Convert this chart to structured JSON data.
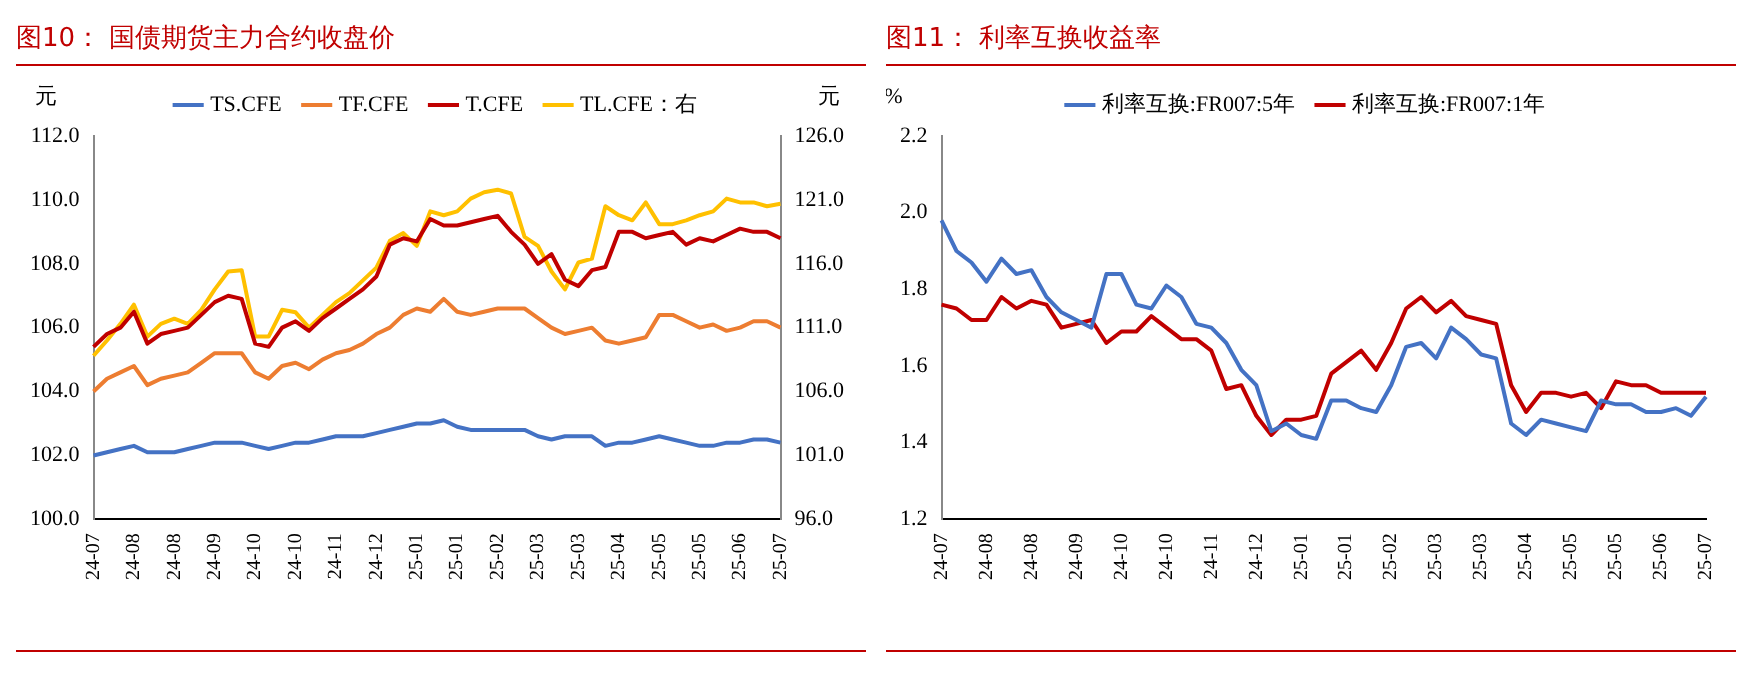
{
  "chart_data": [
    {
      "type": "line",
      "title": "图10：  国债期货主力合约收盘价",
      "ylabel": "元",
      "y2label": "元",
      "legend": "top",
      "grid": false,
      "categories": [
        "24-07",
        null,
        null,
        "24-08",
        null,
        null,
        "24-08",
        null,
        null,
        "24-09",
        null,
        null,
        "24-10",
        null,
        null,
        "24-10",
        null,
        null,
        "24-11",
        null,
        null,
        "24-12",
        null,
        null,
        "25-01",
        null,
        null,
        "25-01",
        null,
        null,
        "25-02",
        null,
        null,
        "25-03",
        null,
        null,
        "25-03",
        null,
        null,
        "25-04",
        null,
        null,
        "25-05",
        null,
        null,
        "25-05",
        null,
        null,
        "25-06",
        null,
        null,
        "25-07"
      ],
      "ylim": [
        100,
        112
      ],
      "yticks": [
        {
          "value": 100,
          "label": "100.0"
        },
        {
          "value": 102,
          "label": "102.0"
        },
        {
          "value": 104,
          "label": "104.0"
        },
        {
          "value": 106,
          "label": "106.0"
        },
        {
          "value": 108,
          "label": "108.0"
        },
        {
          "value": 110,
          "label": "110.0"
        },
        {
          "value": 112,
          "label": "112.0"
        }
      ],
      "y2lim": [
        96,
        126
      ],
      "y2ticks": [
        {
          "value": 96,
          "label": "96.0"
        },
        {
          "value": 101,
          "label": "101.0"
        },
        {
          "value": 106,
          "label": "106.0"
        },
        {
          "value": 111,
          "label": "111.0"
        },
        {
          "value": 116,
          "label": "116.0"
        },
        {
          "value": 121,
          "label": "121.0"
        },
        {
          "value": 126,
          "label": "126.0"
        }
      ],
      "series": [
        {
          "name": "TS.CFE",
          "color": "#4472c4",
          "values": [
            102.0,
            102.1,
            102.2,
            102.3,
            102.1,
            102.1,
            102.1,
            102.2,
            102.3,
            102.4,
            102.4,
            102.4,
            102.3,
            102.2,
            102.3,
            102.4,
            102.4,
            102.5,
            102.6,
            102.6,
            102.6,
            102.7,
            102.8,
            102.9,
            103.0,
            103.0,
            103.1,
            102.9,
            102.8,
            102.8,
            102.8,
            102.8,
            102.8,
            102.6,
            102.5,
            102.6,
            102.6,
            102.6,
            102.3,
            102.4,
            102.4,
            102.5,
            102.6,
            102.5,
            102.4,
            102.3,
            102.3,
            102.4,
            102.4,
            102.5,
            102.5,
            102.4
          ]
        },
        {
          "name": "TF.CFE",
          "color": "#ed7d31",
          "values": [
            104.0,
            104.4,
            104.6,
            104.8,
            104.2,
            104.4,
            104.5,
            104.6,
            104.9,
            105.2,
            105.2,
            105.2,
            104.6,
            104.4,
            104.8,
            104.9,
            104.7,
            105.0,
            105.2,
            105.3,
            105.5,
            105.8,
            106.0,
            106.4,
            106.6,
            106.5,
            106.9,
            106.5,
            106.4,
            106.5,
            106.6,
            106.6,
            106.6,
            106.3,
            106.0,
            105.8,
            105.9,
            106.0,
            105.6,
            105.5,
            105.6,
            105.7,
            106.4,
            106.4,
            106.2,
            106.0,
            106.1,
            105.9,
            106.0,
            106.2,
            106.2,
            106.0
          ]
        },
        {
          "name": "T.CFE",
          "color": "#c00000",
          "values": [
            105.4,
            105.8,
            106.0,
            106.5,
            105.5,
            105.8,
            105.9,
            106.0,
            106.4,
            106.8,
            107.0,
            106.9,
            105.5,
            105.4,
            106.0,
            106.2,
            105.9,
            106.3,
            106.6,
            106.9,
            107.2,
            107.6,
            108.6,
            108.8,
            108.7,
            109.4,
            109.2,
            109.2,
            109.3,
            109.4,
            109.5,
            109.0,
            108.6,
            108.0,
            108.3,
            107.5,
            107.3,
            107.8,
            107.9,
            109.0,
            109.0,
            108.8,
            108.9,
            109.0,
            108.6,
            108.8,
            108.7,
            108.9,
            109.1,
            109.0,
            109.0,
            108.8
          ]
        },
        {
          "name": "TL.CFE：右",
          "color": "#ffc000",
          "axis": "y2",
          "values": [
            108.8,
            110.0,
            111.3,
            112.8,
            110.3,
            111.3,
            111.7,
            111.3,
            112.4,
            114.0,
            115.4,
            115.5,
            110.3,
            110.3,
            112.4,
            112.2,
            111.0,
            112.0,
            113.0,
            113.7,
            114.7,
            115.7,
            117.8,
            118.4,
            117.4,
            120.1,
            119.8,
            120.1,
            121.1,
            121.6,
            121.8,
            121.5,
            118.1,
            117.4,
            115.4,
            114.0,
            116.1,
            116.4,
            120.5,
            119.8,
            119.4,
            120.8,
            119.1,
            119.1,
            119.4,
            119.8,
            120.1,
            121.1,
            120.8,
            120.8,
            120.5,
            120.7
          ]
        }
      ]
    },
    {
      "type": "line",
      "title": "图11：  利率互换收益率",
      "ylabel": "%",
      "legend": "top",
      "grid": false,
      "categories": [
        "24-07",
        null,
        null,
        "24-08",
        null,
        null,
        "24-08",
        null,
        null,
        "24-09",
        null,
        null,
        "24-10",
        null,
        null,
        "24-10",
        null,
        null,
        "24-11",
        null,
        null,
        "24-12",
        null,
        null,
        "25-01",
        null,
        null,
        "25-01",
        null,
        null,
        "25-02",
        null,
        null,
        "25-03",
        null,
        null,
        "25-03",
        null,
        null,
        "25-04",
        null,
        null,
        "25-05",
        null,
        null,
        "25-05",
        null,
        null,
        "25-06",
        null,
        null,
        "25-07"
      ],
      "ylim": [
        1.2,
        2.2
      ],
      "yticks": [
        1.2,
        1.4,
        1.6,
        1.8,
        {
          "value": 2,
          "label": "2.0"
        },
        2.2
      ],
      "series": [
        {
          "name": "利率互换:FR007:5年",
          "color": "#4472c4",
          "values": [
            1.98,
            1.9,
            1.87,
            1.82,
            1.88,
            1.84,
            1.85,
            1.78,
            1.74,
            1.72,
            1.7,
            1.84,
            1.84,
            1.76,
            1.75,
            1.81,
            1.78,
            1.71,
            1.7,
            1.66,
            1.59,
            1.55,
            1.43,
            1.45,
            1.42,
            1.41,
            1.51,
            1.51,
            1.49,
            1.48,
            1.55,
            1.65,
            1.66,
            1.62,
            1.7,
            1.67,
            1.63,
            1.62,
            1.45,
            1.42,
            1.46,
            1.45,
            1.44,
            1.43,
            1.51,
            1.5,
            1.5,
            1.48,
            1.48,
            1.49,
            1.47,
            1.52
          ]
        },
        {
          "name": "利率互换:FR007:1年",
          "color": "#c00000",
          "values": [
            1.76,
            1.75,
            1.72,
            1.72,
            1.78,
            1.75,
            1.77,
            1.76,
            1.7,
            1.71,
            1.72,
            1.66,
            1.69,
            1.69,
            1.73,
            1.7,
            1.67,
            1.67,
            1.64,
            1.54,
            1.55,
            1.47,
            1.42,
            1.46,
            1.46,
            1.47,
            1.58,
            1.61,
            1.64,
            1.59,
            1.66,
            1.75,
            1.78,
            1.74,
            1.77,
            1.73,
            1.72,
            1.71,
            1.55,
            1.48,
            1.53,
            1.53,
            1.52,
            1.53,
            1.49,
            1.56,
            1.55,
            1.55,
            1.53,
            1.53,
            1.53,
            1.53
          ]
        }
      ]
    }
  ]
}
